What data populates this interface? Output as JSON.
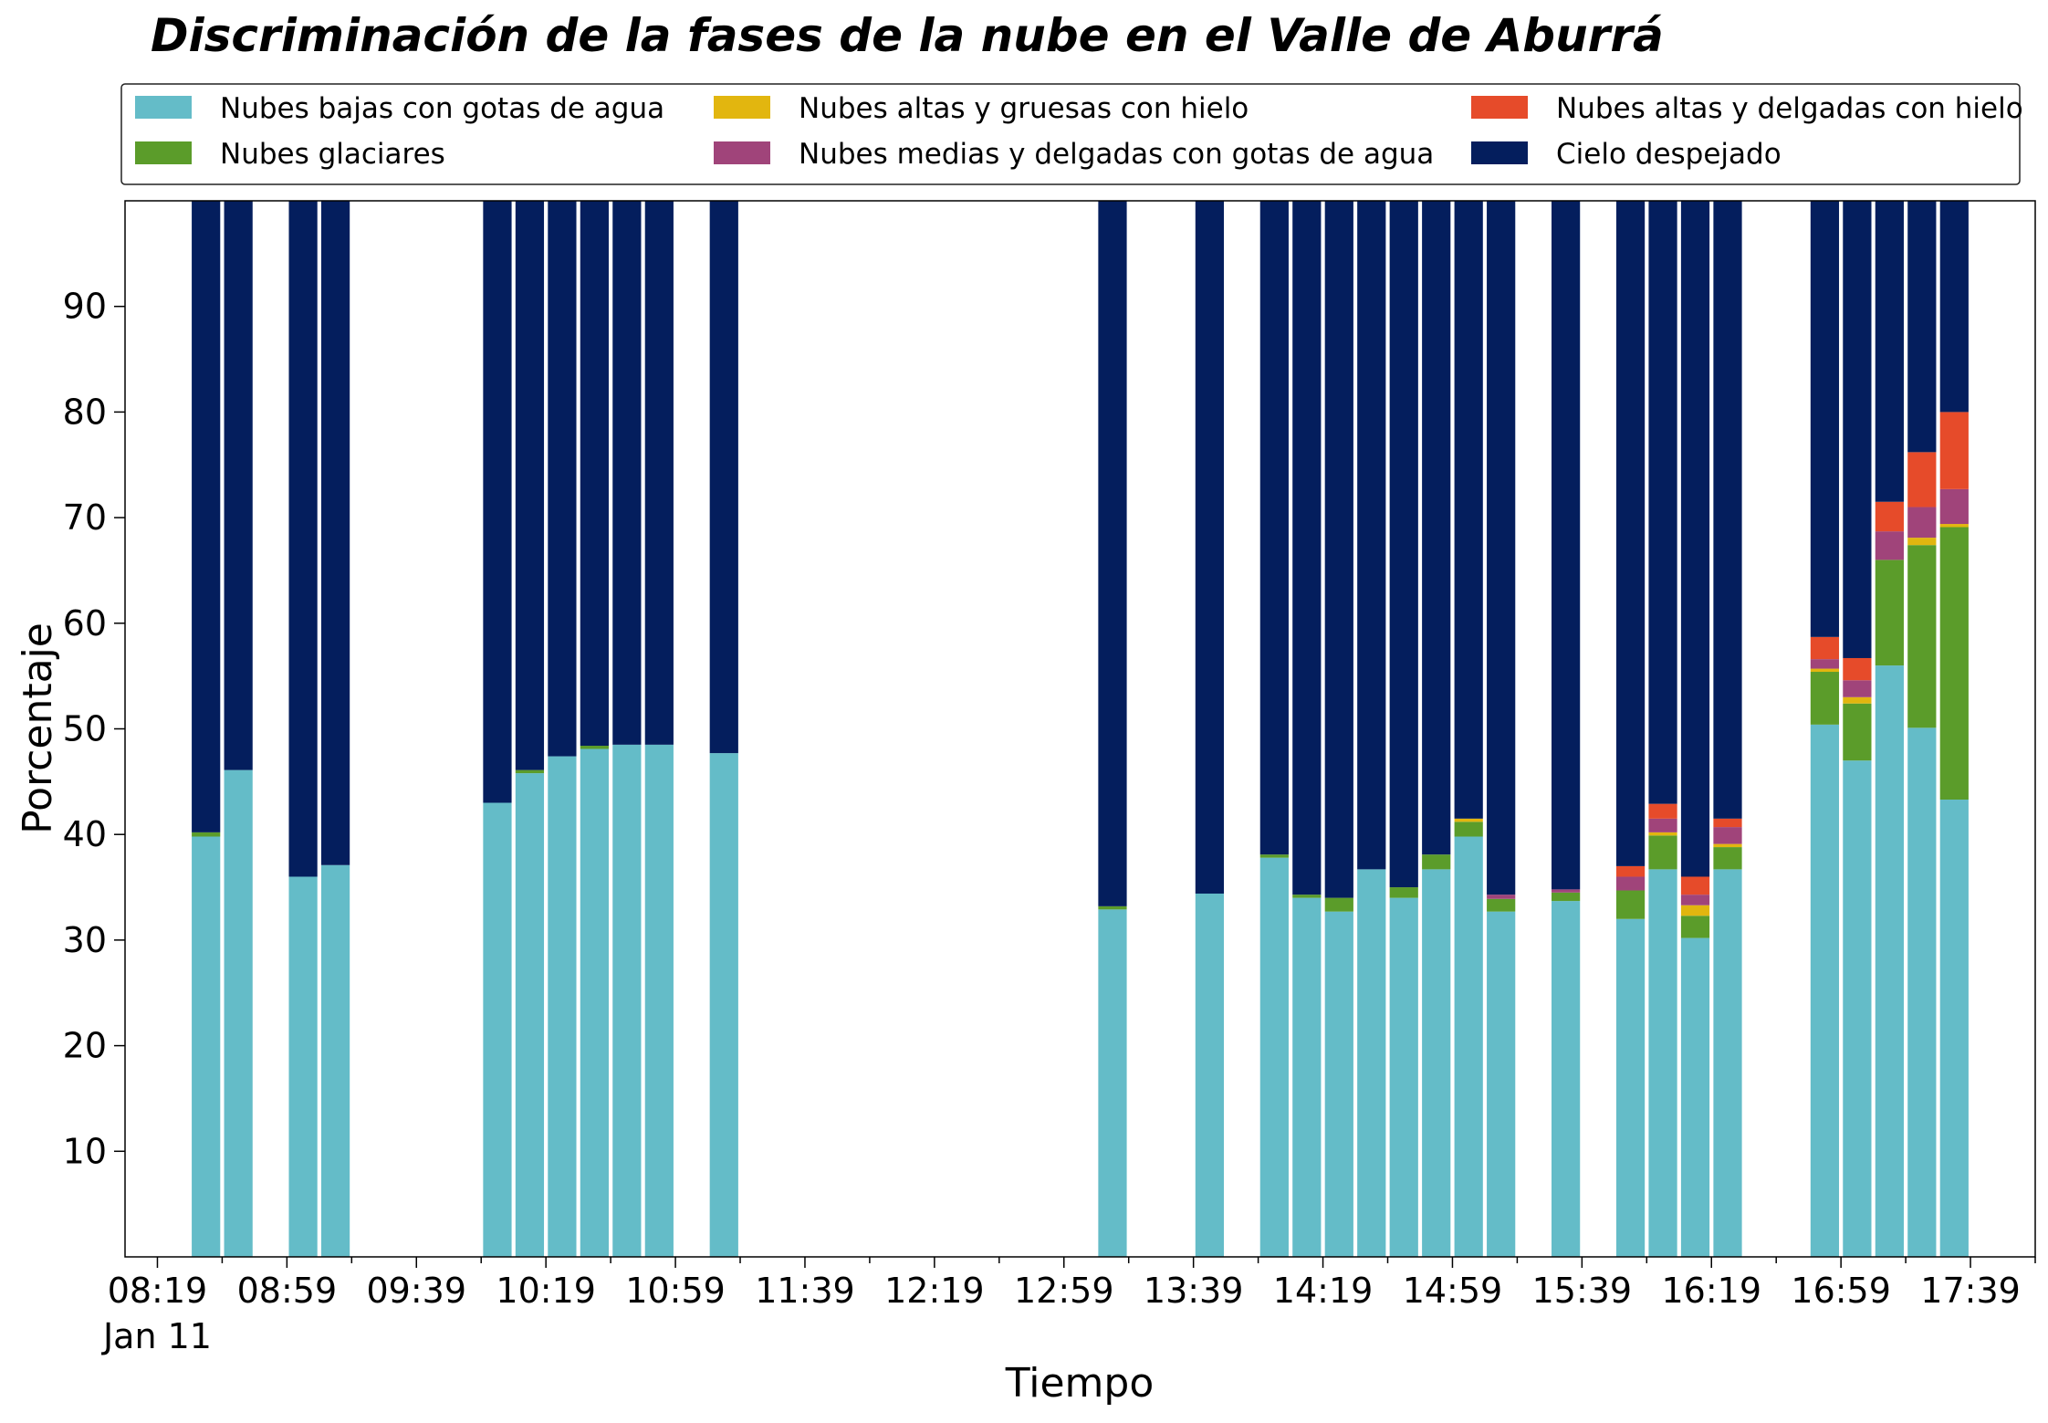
{
  "chart_data": {
    "type": "bar",
    "stacked": true,
    "title": "Discriminación de la fases de la nube en el Valle de Aburrá",
    "xlabel": "Tiempo",
    "ylabel": "Porcentaje",
    "ylim": [
      0,
      100
    ],
    "yticks": [
      10,
      20,
      30,
      40,
      50,
      60,
      70,
      80,
      90
    ],
    "xlim": [
      "08:09",
      "17:59"
    ],
    "x_tick_labels": [
      "08:19",
      "08:59",
      "09:39",
      "10:19",
      "10:59",
      "11:39",
      "12:19",
      "12:59",
      "13:39",
      "14:19",
      "14:59",
      "15:39",
      "16:19",
      "16:59",
      "17:39"
    ],
    "x_date_label": "Jan 11",
    "legend": {
      "position": "top",
      "columns": 3,
      "frame": true
    },
    "grid": false,
    "categories": [
      "08:34",
      "08:44",
      "09:04",
      "09:14",
      "10:04",
      "10:14",
      "10:24",
      "10:34",
      "10:44",
      "10:54",
      "11:14",
      "13:14",
      "13:44",
      "14:04",
      "14:14",
      "14:24",
      "14:34",
      "14:44",
      "14:54",
      "15:04",
      "15:14",
      "15:34",
      "15:54",
      "16:04",
      "16:14",
      "16:24",
      "16:54",
      "17:04",
      "17:14",
      "17:24",
      "17:34"
    ],
    "series": [
      {
        "name": "Nubes bajas con gotas de agua",
        "color": "#64bcc8",
        "values": [
          39.8,
          46.1,
          36.0,
          37.1,
          43.0,
          45.8,
          47.4,
          48.1,
          48.5,
          48.5,
          47.7,
          32.9,
          34.4,
          37.8,
          34.0,
          32.7,
          36.7,
          34.0,
          36.7,
          39.8,
          32.7,
          33.7,
          32.0,
          36.7,
          30.2,
          36.7,
          50.4,
          47.0,
          56.0,
          50.1,
          43.3
        ]
      },
      {
        "name": "Nubes glaciares",
        "color": "#5b9c2a",
        "values": [
          0.4,
          0.0,
          0.0,
          0.0,
          0.0,
          0.3,
          0.0,
          0.3,
          0.0,
          0.0,
          0.0,
          0.3,
          0.0,
          0.3,
          0.3,
          1.3,
          0.0,
          1.0,
          1.4,
          1.4,
          1.2,
          0.8,
          2.7,
          3.2,
          2.1,
          2.1,
          5.0,
          5.4,
          10.0,
          17.3,
          25.8
        ]
      },
      {
        "name": "Nubes altas y gruesas con hielo",
        "color": "#e2b60f",
        "values": [
          0.0,
          0.0,
          0.0,
          0.0,
          0.0,
          0.0,
          0.0,
          0.0,
          0.0,
          0.0,
          0.0,
          0.0,
          0.0,
          0.0,
          0.0,
          0.0,
          0.0,
          0.0,
          0.0,
          0.3,
          0.0,
          0.0,
          0.0,
          0.3,
          1.0,
          0.3,
          0.3,
          0.6,
          0.0,
          0.7,
          0.3
        ]
      },
      {
        "name": "Nubes medias y delgadas con gotas de agua",
        "color": "#a0447a",
        "values": [
          0.0,
          0.0,
          0.0,
          0.0,
          0.0,
          0.0,
          0.0,
          0.0,
          0.0,
          0.0,
          0.0,
          0.0,
          0.0,
          0.0,
          0.0,
          0.0,
          0.0,
          0.0,
          0.0,
          0.0,
          0.4,
          0.3,
          1.3,
          1.3,
          1.0,
          1.6,
          0.9,
          1.6,
          2.7,
          2.9,
          3.3
        ]
      },
      {
        "name": "Nubes altas y delgadas con hielo",
        "color": "#e64b2a",
        "values": [
          0.0,
          0.0,
          0.0,
          0.0,
          0.0,
          0.0,
          0.0,
          0.0,
          0.0,
          0.0,
          0.0,
          0.0,
          0.0,
          0.0,
          0.0,
          0.0,
          0.0,
          0.0,
          0.0,
          0.0,
          0.0,
          0.0,
          1.0,
          1.4,
          1.7,
          0.8,
          2.1,
          2.1,
          2.8,
          5.2,
          7.3
        ]
      },
      {
        "name": "Cielo despejado",
        "color": "#041e5d",
        "values": [
          59.8,
          53.9,
          64.0,
          62.9,
          57.0,
          53.9,
          52.6,
          51.6,
          51.5,
          51.5,
          52.3,
          66.8,
          65.6,
          61.9,
          65.7,
          66.0,
          63.3,
          65.0,
          61.9,
          58.5,
          65.7,
          65.2,
          63.0,
          57.1,
          64.0,
          58.5,
          41.3,
          43.3,
          28.5,
          23.8,
          20.0
        ]
      }
    ]
  }
}
